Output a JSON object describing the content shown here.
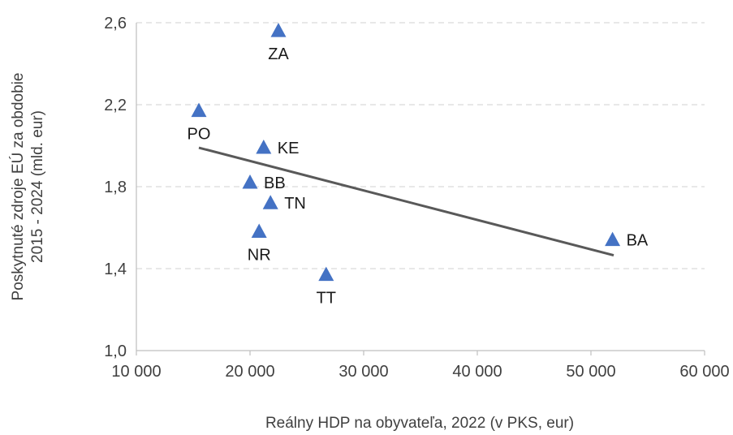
{
  "chart_data": {
    "type": "scatter",
    "title": "",
    "xlabel": "Reálny HDP na obyvateľa, 2022 (v PKS, eur)",
    "ylabel_lines": [
      "Poskytnuté zdroje EÚ za obdobie",
      "2015 - 2024 (mld. eur)"
    ],
    "xlim": [
      10000,
      60000
    ],
    "ylim": [
      1.0,
      2.6
    ],
    "x_ticks": [
      10000,
      20000,
      30000,
      40000,
      50000,
      60000
    ],
    "x_tick_labels": [
      "10 000",
      "20 000",
      "30 000",
      "40 000",
      "50 000",
      "60 000"
    ],
    "y_ticks": [
      1.0,
      1.4,
      1.8,
      2.2,
      2.6
    ],
    "y_tick_labels": [
      "1,0",
      "1,4",
      "1,8",
      "2,2",
      "2,6"
    ],
    "grid": "horizontal-dashed",
    "legend": "none",
    "marker_color": "#4472c4",
    "trend_color": "#595959",
    "points": [
      {
        "label": "ZA",
        "x": 22500,
        "y": 2.56,
        "label_pos": "below"
      },
      {
        "label": "PO",
        "x": 15500,
        "y": 2.17,
        "label_pos": "below"
      },
      {
        "label": "KE",
        "x": 21200,
        "y": 1.99,
        "label_pos": "right"
      },
      {
        "label": "BB",
        "x": 20000,
        "y": 1.82,
        "label_pos": "right"
      },
      {
        "label": "TN",
        "x": 21800,
        "y": 1.72,
        "label_pos": "right"
      },
      {
        "label": "NR",
        "x": 20800,
        "y": 1.58,
        "label_pos": "below"
      },
      {
        "label": "TT",
        "x": 26700,
        "y": 1.37,
        "label_pos": "below"
      },
      {
        "label": "BA",
        "x": 51900,
        "y": 1.54,
        "label_pos": "right"
      }
    ],
    "trendline": {
      "x": [
        15500,
        52000
      ],
      "y": [
        1.99,
        1.465
      ]
    }
  }
}
